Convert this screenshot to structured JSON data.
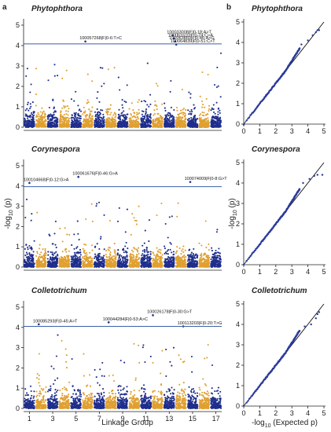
{
  "panel_labels": {
    "a": "a",
    "b": "b"
  },
  "colors": {
    "odd_group": "#1f2e8c",
    "even_group": "#e0a030",
    "threshold": "#3a5fa8",
    "qq_points": "#2a3a9a",
    "diagonal": "#111111"
  },
  "manhattan": {
    "xlabel": "Linkage Group",
    "ylabel_main": "-log",
    "ylabel_sub": "10",
    "ylabel_tail": " (p)",
    "x_tick_labels": [
      "1",
      "3",
      "5",
      "7",
      "9",
      "11",
      "13",
      "15",
      "17"
    ],
    "y_tick_labels": [
      "0",
      "1",
      "2",
      "3",
      "4",
      "5"
    ]
  },
  "qq": {
    "xlabel_main": "-log",
    "xlabel_sub": "10",
    "xlabel_tail": " (Expected p)",
    "ylabel_main": "-log",
    "ylabel_sub": "10",
    "ylabel_tail": " (p)",
    "x_tick_labels": [
      "0",
      "1",
      "2",
      "3",
      "4",
      "5"
    ],
    "y_tick_labels": [
      "0",
      "1",
      "2",
      "3",
      "4",
      "5"
    ]
  },
  "chart_data": [
    {
      "type": "scatter",
      "title": "Phytophthora",
      "ylim": [
        0,
        5
      ],
      "threshold": 4.08,
      "linkage_groups": 17,
      "annotations": [
        {
          "text": "100057268|F|0-6:T>C",
          "x": 5.8,
          "y": 4.3
        },
        {
          "text": "100033008|F|0-18:A>T",
          "x": 13.3,
          "y": 4.6
        },
        {
          "text": "100061610|F|0-24:C>A",
          "x": 13.4,
          "y": 4.45
        },
        {
          "text": "100063860|F|0-46:A>G",
          "x": 13.5,
          "y": 4.3
        },
        {
          "text": "100064839|F|0-51:C>T",
          "x": 13.6,
          "y": 4.15
        }
      ]
    },
    {
      "type": "scatter",
      "title": "Corynespora",
      "ylim": [
        0,
        5
      ],
      "threshold": 3.97,
      "linkage_groups": 17,
      "annotations": [
        {
          "text": "100104668|F|0-12:G>A",
          "x": 1.0,
          "y": 4.25
        },
        {
          "text": "100061676|F|0-46:G>A",
          "x": 5.2,
          "y": 4.55
        },
        {
          "text": "100074009|F|0-8:G>T",
          "x": 14.8,
          "y": 4.3
        }
      ]
    },
    {
      "type": "scatter",
      "title": "Colletotrichum",
      "ylim": [
        0,
        5
      ],
      "threshold": 4.05,
      "linkage_groups": 17,
      "annotations": [
        {
          "text": "100085293|F|0-45:A>T",
          "x": 1.8,
          "y": 4.25
        },
        {
          "text": "100044284|F|0-53:A>C",
          "x": 7.8,
          "y": 4.35
        },
        {
          "text": "100026178|F|0-30:G>T",
          "x": 11.6,
          "y": 4.7
        },
        {
          "text": "100113203|F|0-20:T>G",
          "x": 14.2,
          "y": 4.15
        }
      ]
    },
    {
      "type": "scatter",
      "title": "Phytophthora",
      "xlim": [
        0,
        5
      ],
      "ylim": [
        0,
        5
      ],
      "tail_points": [
        [
          3.6,
          3.9
        ],
        [
          4.0,
          4.1
        ],
        [
          4.3,
          4.35
        ],
        [
          4.5,
          4.5
        ],
        [
          4.6,
          4.6
        ],
        [
          4.7,
          4.6
        ]
      ]
    },
    {
      "type": "scatter",
      "title": "Corynespora",
      "xlim": [
        0,
        5
      ],
      "ylim": [
        0,
        5
      ],
      "tail_points": [
        [
          3.7,
          4.0
        ],
        [
          4.1,
          4.2
        ],
        [
          4.4,
          4.35
        ],
        [
          4.6,
          4.4
        ],
        [
          4.9,
          4.4
        ]
      ]
    },
    {
      "type": "scatter",
      "title": "Colletotrichum",
      "xlim": [
        0,
        5
      ],
      "ylim": [
        0,
        5
      ],
      "tail_points": [
        [
          3.8,
          3.9
        ],
        [
          4.2,
          4.0
        ],
        [
          4.5,
          4.3
        ],
        [
          4.6,
          4.5
        ],
        [
          4.7,
          4.6
        ]
      ]
    }
  ]
}
